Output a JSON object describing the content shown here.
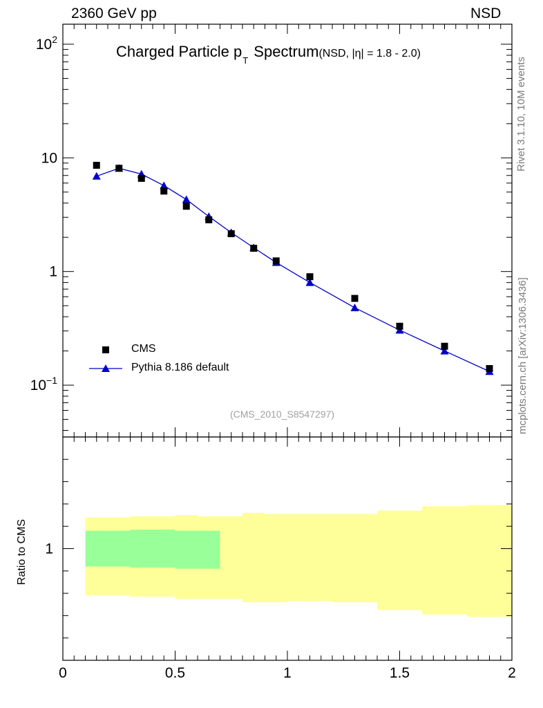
{
  "header": {
    "energy": "2360 GeV pp",
    "process": "NSD"
  },
  "title": {
    "main": "Charged Particle p",
    "sub": "T",
    "after": "Spectrum",
    "small": "(NSD, |η| = 1.8 - 2.0)"
  },
  "side_labels": {
    "rivet": "Rivet 3.1.10, 10M events",
    "mcplots": "mcplots.cern.ch [arXiv:1306.3436]"
  },
  "analysis_tag": "(CMS_2010_S8547297)",
  "ratio_ylabel": "Ratio to CMS",
  "legend": {
    "cms": "CMS",
    "pythia": "Pythia 8.186 default"
  },
  "colors": {
    "data": "#000000",
    "mc": "#0000cc",
    "band_green": "#99ff99",
    "band_yellow": "#ffff99"
  },
  "chart_data": [
    {
      "type": "scatter",
      "title": "Charged Particle pT Spectrum (NSD, |η| = 1.8 - 2.0)",
      "yscale": "log",
      "ylim": [
        0.035,
        150
      ],
      "xlim": [
        0,
        2
      ],
      "ytick_labels": [
        "10^-1",
        "1",
        "10",
        "10^2"
      ],
      "legend_position": "lower-left",
      "series": [
        {
          "name": "CMS",
          "marker": "square",
          "x": [
            0.15,
            0.25,
            0.35,
            0.45,
            0.55,
            0.65,
            0.75,
            0.85,
            0.95,
            1.1,
            1.3,
            1.5,
            1.7,
            1.9
          ],
          "y": [
            8.6,
            8.1,
            6.6,
            5.1,
            3.75,
            2.85,
            2.15,
            1.6,
            1.24,
            0.9,
            0.58,
            0.33,
            0.22,
            0.14
          ]
        },
        {
          "name": "Pythia 8.186 default",
          "marker": "triangle",
          "x": [
            0.15,
            0.25,
            0.35,
            0.45,
            0.55,
            0.65,
            0.75,
            0.85,
            0.95,
            1.1,
            1.3,
            1.5,
            1.7,
            1.9
          ],
          "y": [
            6.9,
            8.1,
            7.2,
            5.7,
            4.3,
            3.05,
            2.2,
            1.62,
            1.2,
            0.8,
            0.48,
            0.305,
            0.2,
            0.132
          ]
        }
      ]
    },
    {
      "type": "area",
      "ylabel": "Ratio to CMS",
      "xlim": [
        0,
        2
      ],
      "xtick_labels": [
        "0",
        "0.5",
        "1",
        "1.5",
        "2"
      ],
      "ytick_labels": [
        "1"
      ],
      "ylim": [
        0.5,
        1.5
      ],
      "bins": [
        {
          "xlo": 0.1,
          "xhi": 0.2,
          "inner": [
            0.92,
            1.08
          ],
          "outer": [
            0.79,
            1.14
          ]
        },
        {
          "xlo": 0.2,
          "xhi": 0.3,
          "inner": [
            0.92,
            1.08
          ],
          "outer": [
            0.79,
            1.14
          ]
        },
        {
          "xlo": 0.3,
          "xhi": 0.4,
          "inner": [
            0.915,
            1.085
          ],
          "outer": [
            0.785,
            1.145
          ]
        },
        {
          "xlo": 0.4,
          "xhi": 0.5,
          "inner": [
            0.915,
            1.085
          ],
          "outer": [
            0.785,
            1.145
          ]
        },
        {
          "xlo": 0.5,
          "xhi": 0.6,
          "inner": [
            0.91,
            1.08
          ],
          "outer": [
            0.775,
            1.15
          ]
        },
        {
          "xlo": 0.6,
          "xhi": 0.7,
          "inner": [
            0.91,
            1.08
          ],
          "outer": [
            0.775,
            1.145
          ]
        },
        {
          "xlo": 0.7,
          "xhi": 0.8,
          "outer": [
            0.775,
            1.145
          ]
        },
        {
          "xlo": 0.8,
          "xhi": 0.9,
          "outer": [
            0.76,
            1.16
          ]
        },
        {
          "xlo": 0.9,
          "xhi": 1.0,
          "outer": [
            0.76,
            1.155
          ]
        },
        {
          "xlo": 1.0,
          "xhi": 1.2,
          "outer": [
            0.765,
            1.155
          ]
        },
        {
          "xlo": 1.2,
          "xhi": 1.4,
          "outer": [
            0.76,
            1.155
          ]
        },
        {
          "xlo": 1.4,
          "xhi": 1.6,
          "outer": [
            0.725,
            1.17
          ]
        },
        {
          "xlo": 1.6,
          "xhi": 1.8,
          "outer": [
            0.705,
            1.19
          ]
        },
        {
          "xlo": 1.8,
          "xhi": 2.0,
          "outer": [
            0.695,
            1.195
          ]
        }
      ]
    }
  ]
}
